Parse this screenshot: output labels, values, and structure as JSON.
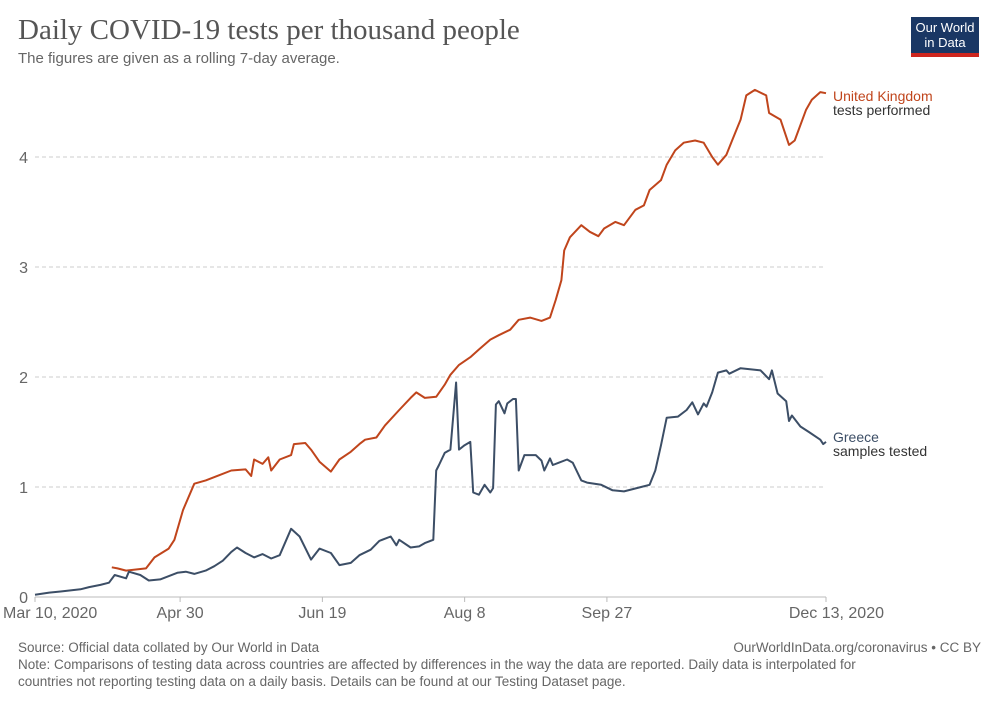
{
  "header": {
    "title": "Daily COVID-19 tests per thousand people",
    "subtitle": "The figures are given as a rolling 7-day average.",
    "logo": "Our World in Data"
  },
  "footer": {
    "source": "Source: Official data collated by Our World in Data",
    "license": "OurWorldInData.org/coronavirus • CC BY",
    "note_line1": "Note: Comparisons of testing data across countries are affected by differences in the way the data are reported. Daily data is interpolated for",
    "note_line2": "countries not reporting testing data on a daily basis. Details can be found at our Testing Dataset page."
  },
  "chart_data": {
    "type": "line",
    "title": "Daily COVID-19 tests per thousand people",
    "xlabel": "",
    "ylabel": "",
    "x_unit": "days since Mar 10, 2020",
    "xlim": [
      0,
      278
    ],
    "ylim": [
      0,
      4.7
    ],
    "yticks": [
      0,
      1,
      2,
      3,
      4
    ],
    "xticks": [
      {
        "day": 0,
        "label": "Mar 10, 2020"
      },
      {
        "day": 51,
        "label": "Apr 30"
      },
      {
        "day": 101,
        "label": "Jun 19"
      },
      {
        "day": 151,
        "label": "Aug 8"
      },
      {
        "day": 201,
        "label": "Sep 27"
      },
      {
        "day": 278,
        "label": "Dec 13, 2020"
      }
    ],
    "grid": "horizontal dashed",
    "series": [
      {
        "name": "United Kingdom",
        "sublabel": "tests performed",
        "color": "#c0451c",
        "points": [
          [
            27,
            0.27
          ],
          [
            29,
            0.26
          ],
          [
            32,
            0.24
          ],
          [
            39,
            0.26
          ],
          [
            42,
            0.36
          ],
          [
            47,
            0.44
          ],
          [
            49,
            0.52
          ],
          [
            52,
            0.79
          ],
          [
            56,
            1.03
          ],
          [
            60,
            1.06
          ],
          [
            65,
            1.11
          ],
          [
            69,
            1.15
          ],
          [
            74,
            1.16
          ],
          [
            76,
            1.1
          ],
          [
            77,
            1.25
          ],
          [
            80,
            1.21
          ],
          [
            82,
            1.27
          ],
          [
            83,
            1.15
          ],
          [
            86,
            1.25
          ],
          [
            90,
            1.29
          ],
          [
            91,
            1.39
          ],
          [
            95,
            1.4
          ],
          [
            97,
            1.34
          ],
          [
            100,
            1.23
          ],
          [
            104,
            1.14
          ],
          [
            107,
            1.25
          ],
          [
            111,
            1.32
          ],
          [
            114,
            1.39
          ],
          [
            116,
            1.43
          ],
          [
            120,
            1.45
          ],
          [
            123,
            1.56
          ],
          [
            128,
            1.7
          ],
          [
            132,
            1.81
          ],
          [
            134,
            1.86
          ],
          [
            137,
            1.81
          ],
          [
            141,
            1.82
          ],
          [
            144,
            1.93
          ],
          [
            146,
            2.02
          ],
          [
            149,
            2.11
          ],
          [
            153,
            2.18
          ],
          [
            156,
            2.25
          ],
          [
            160,
            2.34
          ],
          [
            163,
            2.38
          ],
          [
            167,
            2.43
          ],
          [
            170,
            2.52
          ],
          [
            174,
            2.54
          ],
          [
            178,
            2.51
          ],
          [
            181,
            2.54
          ],
          [
            183,
            2.7
          ],
          [
            185,
            2.88
          ],
          [
            186,
            3.15
          ],
          [
            188,
            3.27
          ],
          [
            192,
            3.38
          ],
          [
            195,
            3.32
          ],
          [
            198,
            3.28
          ],
          [
            200,
            3.35
          ],
          [
            204,
            3.41
          ],
          [
            207,
            3.38
          ],
          [
            211,
            3.52
          ],
          [
            214,
            3.56
          ],
          [
            216,
            3.7
          ],
          [
            220,
            3.79
          ],
          [
            222,
            3.93
          ],
          [
            225,
            4.06
          ],
          [
            228,
            4.13
          ],
          [
            232,
            4.15
          ],
          [
            235,
            4.13
          ],
          [
            238,
            4.0
          ],
          [
            240,
            3.93
          ],
          [
            243,
            4.02
          ],
          [
            245,
            4.15
          ],
          [
            248,
            4.34
          ],
          [
            250,
            4.56
          ],
          [
            253,
            4.61
          ],
          [
            257,
            4.56
          ],
          [
            258,
            4.4
          ],
          [
            262,
            4.34
          ],
          [
            265,
            4.11
          ],
          [
            267,
            4.15
          ],
          [
            271,
            4.43
          ],
          [
            273,
            4.52
          ],
          [
            276,
            4.59
          ],
          [
            278,
            4.58
          ]
        ]
      },
      {
        "name": "Greece",
        "sublabel": "samples tested",
        "color": "#3c4e66",
        "points": [
          [
            0,
            0.02
          ],
          [
            5,
            0.04
          ],
          [
            9,
            0.05
          ],
          [
            16,
            0.07
          ],
          [
            19,
            0.09
          ],
          [
            23,
            0.11
          ],
          [
            26,
            0.13
          ],
          [
            28,
            0.2
          ],
          [
            32,
            0.17
          ],
          [
            33,
            0.23
          ],
          [
            37,
            0.2
          ],
          [
            40,
            0.15
          ],
          [
            44,
            0.16
          ],
          [
            50,
            0.22
          ],
          [
            53,
            0.23
          ],
          [
            56,
            0.21
          ],
          [
            60,
            0.24
          ],
          [
            63,
            0.28
          ],
          [
            66,
            0.33
          ],
          [
            69,
            0.41
          ],
          [
            71,
            0.45
          ],
          [
            74,
            0.4
          ],
          [
            77,
            0.36
          ],
          [
            80,
            0.39
          ],
          [
            83,
            0.35
          ],
          [
            86,
            0.38
          ],
          [
            90,
            0.62
          ],
          [
            93,
            0.55
          ],
          [
            97,
            0.34
          ],
          [
            100,
            0.44
          ],
          [
            104,
            0.4
          ],
          [
            107,
            0.29
          ],
          [
            111,
            0.31
          ],
          [
            114,
            0.38
          ],
          [
            118,
            0.43
          ],
          [
            121,
            0.51
          ],
          [
            125,
            0.55
          ],
          [
            127,
            0.47
          ],
          [
            128,
            0.52
          ],
          [
            132,
            0.45
          ],
          [
            135,
            0.46
          ],
          [
            137,
            0.49
          ],
          [
            140,
            0.52
          ],
          [
            141,
            1.15
          ],
          [
            142,
            1.2
          ],
          [
            144,
            1.31
          ],
          [
            146,
            1.34
          ],
          [
            148,
            1.95
          ],
          [
            149,
            1.34
          ],
          [
            151,
            1.38
          ],
          [
            153,
            1.41
          ],
          [
            154,
            0.95
          ],
          [
            156,
            0.93
          ],
          [
            158,
            1.02
          ],
          [
            160,
            0.95
          ],
          [
            161,
            0.99
          ],
          [
            162,
            1.75
          ],
          [
            163,
            1.78
          ],
          [
            165,
            1.67
          ],
          [
            166,
            1.76
          ],
          [
            168,
            1.8
          ],
          [
            169,
            1.8
          ],
          [
            170,
            1.15
          ],
          [
            172,
            1.29
          ],
          [
            176,
            1.29
          ],
          [
            178,
            1.24
          ],
          [
            179,
            1.15
          ],
          [
            181,
            1.26
          ],
          [
            182,
            1.2
          ],
          [
            184,
            1.22
          ],
          [
            187,
            1.25
          ],
          [
            189,
            1.22
          ],
          [
            192,
            1.06
          ],
          [
            194,
            1.04
          ],
          [
            199,
            1.02
          ],
          [
            203,
            0.97
          ],
          [
            207,
            0.96
          ],
          [
            213,
            1.0
          ],
          [
            216,
            1.02
          ],
          [
            218,
            1.15
          ],
          [
            220,
            1.38
          ],
          [
            222,
            1.63
          ],
          [
            226,
            1.64
          ],
          [
            229,
            1.7
          ],
          [
            231,
            1.77
          ],
          [
            233,
            1.66
          ],
          [
            235,
            1.76
          ],
          [
            236,
            1.73
          ],
          [
            238,
            1.86
          ],
          [
            240,
            2.04
          ],
          [
            243,
            2.06
          ],
          [
            244,
            2.03
          ],
          [
            248,
            2.08
          ],
          [
            255,
            2.06
          ],
          [
            258,
            1.98
          ],
          [
            259,
            2.06
          ],
          [
            261,
            1.85
          ],
          [
            264,
            1.78
          ],
          [
            265,
            1.6
          ],
          [
            266,
            1.65
          ],
          [
            269,
            1.55
          ],
          [
            272,
            1.5
          ],
          [
            276,
            1.43
          ],
          [
            277,
            1.39
          ],
          [
            278,
            1.41
          ]
        ]
      }
    ]
  }
}
